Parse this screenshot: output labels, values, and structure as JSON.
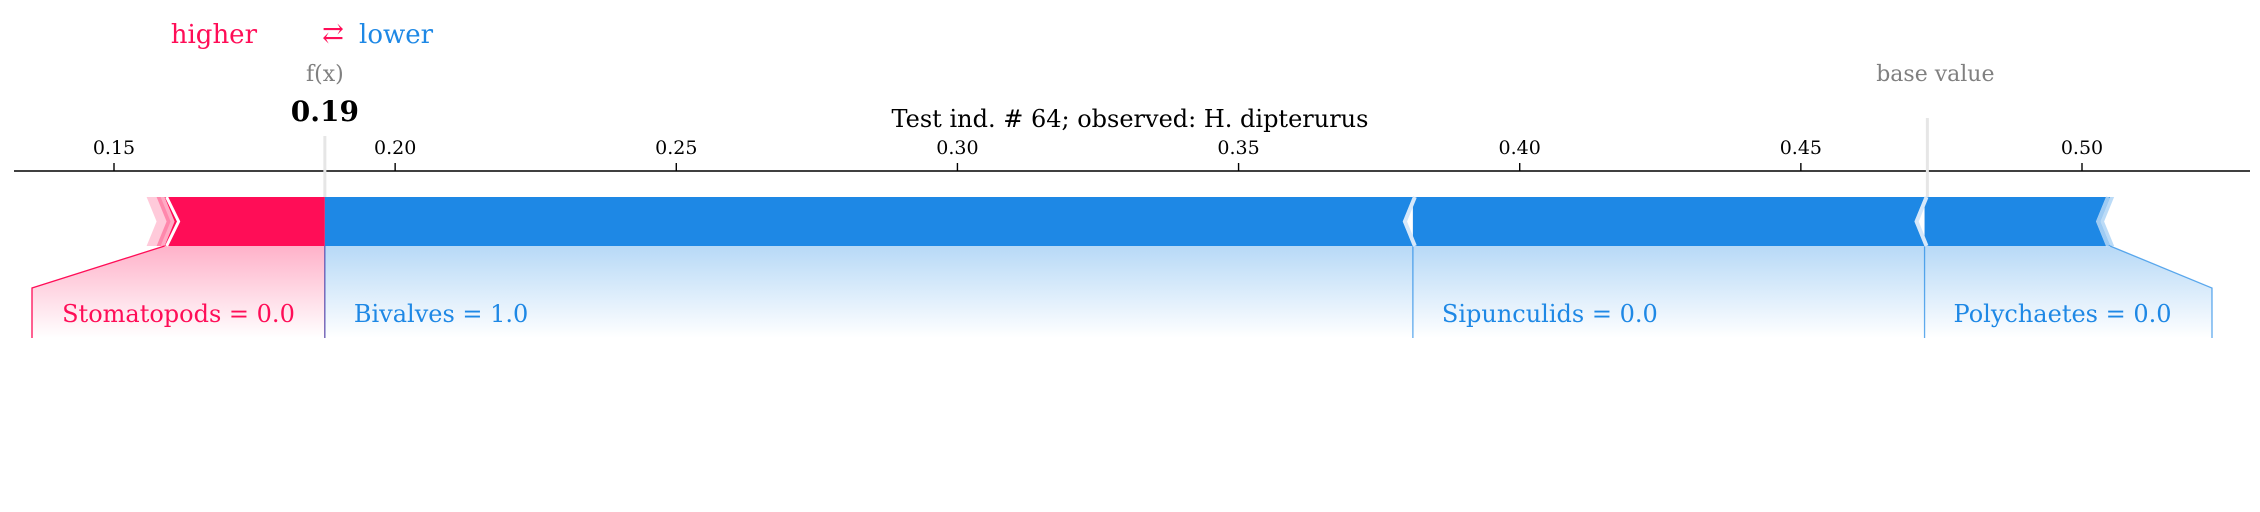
{
  "legend": {
    "higher": "higher",
    "arrow": "⇄",
    "lower": "lower"
  },
  "fx": {
    "label": "f(x)",
    "value_label": "0.19",
    "value": 0.1875
  },
  "base_value": {
    "label": "base value",
    "value": 0.4725
  },
  "colors": {
    "positive": "#ff0d57",
    "negative": "#1e88e5",
    "text_gray": "#808080",
    "axis": "#000000"
  },
  "chart_data": {
    "type": "force",
    "title": "Test ind. # 64; observed: H. dipterurus",
    "xlim": [
      0.132,
      0.53
    ],
    "ticks": [
      0.15,
      0.2,
      0.25,
      0.3,
      0.35,
      0.4,
      0.45,
      0.5
    ],
    "tick_labels": [
      "0.15",
      "0.20",
      "0.25",
      "0.30",
      "0.35",
      "0.40",
      "0.45",
      "0.50"
    ],
    "features": [
      {
        "label": "Stomatopods = 0.0",
        "sign": "positive",
        "start": 0.159,
        "end": 0.1875
      },
      {
        "label": "Bivalves = 1.0",
        "sign": "negative",
        "start": 0.1875,
        "end": 0.381
      },
      {
        "label": "Sipunculids = 0.0",
        "sign": "negative",
        "start": 0.381,
        "end": 0.472
      },
      {
        "label": "Polychaetes = 0.0",
        "sign": "negative",
        "start": 0.472,
        "end": 0.505
      }
    ]
  }
}
